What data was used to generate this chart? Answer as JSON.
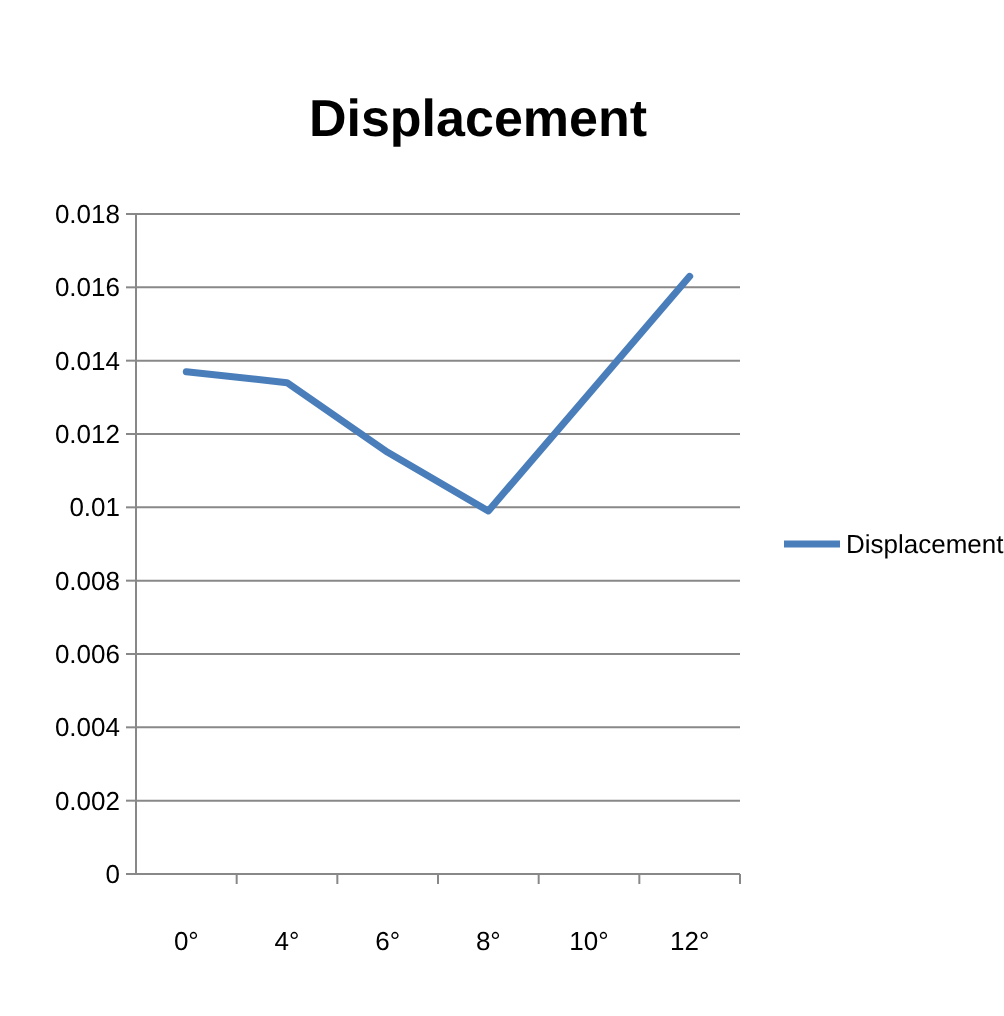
{
  "chart_data": {
    "type": "line",
    "title": "Displacement",
    "categories": [
      "0°",
      "4°",
      "6°",
      "8°",
      "10°",
      "12°"
    ],
    "series": [
      {
        "name": "Displacement",
        "color": "#4a7ebb",
        "values": [
          0.0137,
          0.0134,
          0.0115,
          0.0099,
          0.0131,
          0.0163
        ]
      }
    ],
    "ylim": [
      0,
      0.018
    ],
    "yticks": [
      0,
      0.002,
      0.004,
      0.006,
      0.008,
      {
        "value": 0.01,
        "label": "0.01"
      },
      0.012,
      0.014,
      0.016,
      0.018
    ],
    "grid": "y",
    "legend": "right",
    "marker": "none",
    "line_style": "solid"
  }
}
